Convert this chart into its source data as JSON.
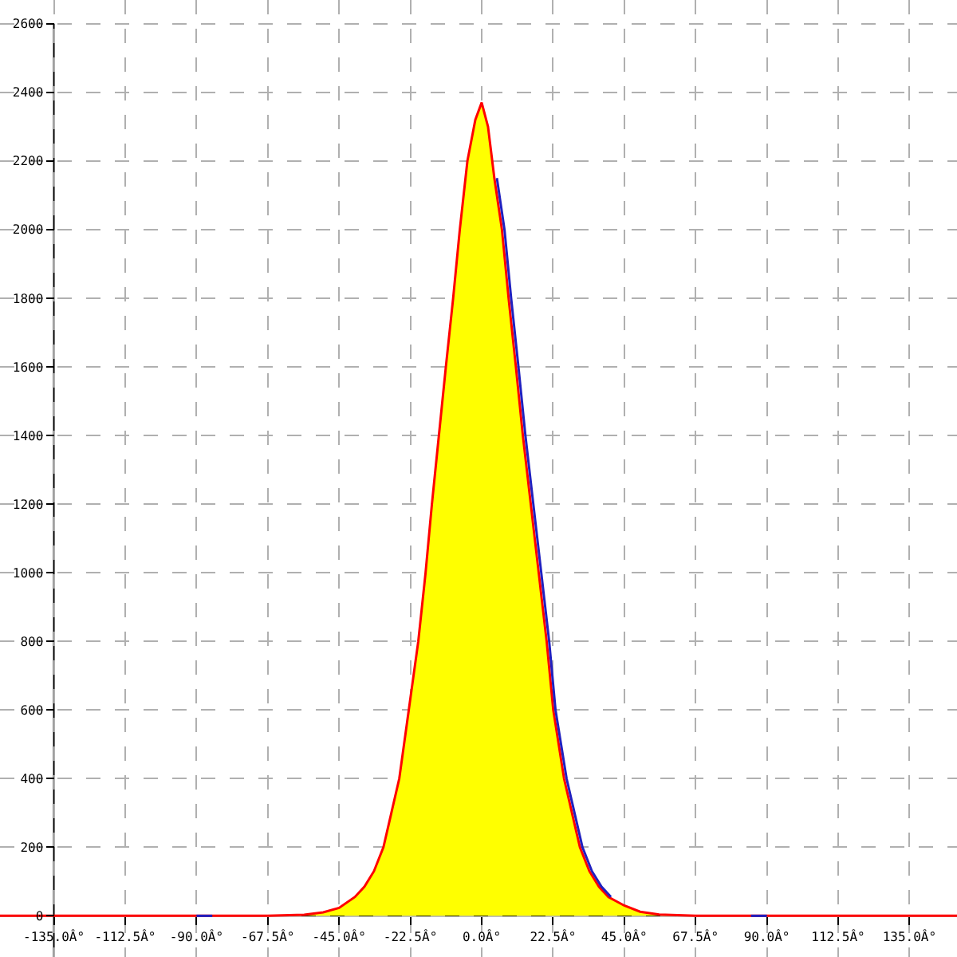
{
  "chart_data": {
    "type": "line",
    "xlim": [
      -152,
      150
    ],
    "ylim": [
      -120,
      2669
    ],
    "xticks": [
      {
        "value": -135,
        "label": "-135.0Â°"
      },
      {
        "value": -112.5,
        "label": "-112.5Â°"
      },
      {
        "value": -90,
        "label": "-90.0Â°"
      },
      {
        "value": -67.5,
        "label": "-67.5Â°"
      },
      {
        "value": -45,
        "label": "-45.0Â°"
      },
      {
        "value": -22.5,
        "label": "-22.5Â°"
      },
      {
        "value": 0,
        "label": "0.0Â°"
      },
      {
        "value": 22.5,
        "label": "22.5Â°"
      },
      {
        "value": 45,
        "label": "45.0Â°"
      },
      {
        "value": 67.5,
        "label": "67.5Â°"
      },
      {
        "value": 90,
        "label": "90.0Â°"
      },
      {
        "value": 112.5,
        "label": "112.5Â°"
      },
      {
        "value": 135,
        "label": "135.0Â°"
      }
    ],
    "yticks": [
      0,
      200,
      400,
      600,
      800,
      1000,
      1200,
      1400,
      1600,
      1800,
      2000,
      2200,
      2400,
      2600
    ],
    "grid": true,
    "line_style": "solid",
    "marker": "none",
    "series": [
      {
        "type": "area",
        "color": "#ffff00",
        "x": [
          -67.5,
          -56,
          -50,
          -45,
          -40,
          -37,
          -34,
          -31,
          -28.5,
          -26,
          -23,
          -20,
          -17.7,
          -15.7,
          -13.5,
          -11.3,
          -9,
          -6.9,
          -4.5,
          -2,
          0,
          2,
          4,
          6.4,
          8.5,
          10.8,
          13,
          15.5,
          18,
          20.5,
          22.6,
          26,
          28.5,
          31,
          34,
          37,
          40,
          45,
          50,
          56,
          67.5
        ],
        "values": [
          0,
          3,
          10,
          23,
          55,
          85,
          130,
          200,
          300,
          400,
          600,
          800,
          1000,
          1200,
          1400,
          1600,
          1800,
          2000,
          2200,
          2320,
          2370,
          2300,
          2150,
          2000,
          1800,
          1600,
          1400,
          1200,
          1000,
          800,
          600,
          400,
          300,
          200,
          130,
          85,
          55,
          30,
          12,
          4,
          0
        ]
      },
      {
        "color": "#ff0000",
        "x": [
          -152,
          -67.5,
          -56,
          -50,
          -45,
          -40,
          -37,
          -34,
          -31,
          -28.5,
          -26,
          -23,
          -20,
          -17.7,
          -15.7,
          -13.5,
          -11.3,
          -9,
          -6.9,
          -4.5,
          -2,
          0,
          2,
          4,
          6.4,
          8.5,
          10.8,
          13,
          15.5,
          18,
          20.5,
          22.6,
          26,
          28.5,
          31,
          34,
          37,
          40,
          45,
          50,
          56,
          67.5,
          150
        ],
        "values": [
          0,
          0,
          3,
          10,
          23,
          55,
          85,
          130,
          200,
          300,
          400,
          600,
          800,
          1000,
          1200,
          1400,
          1600,
          1800,
          2000,
          2200,
          2320,
          2370,
          2300,
          2150,
          2000,
          1800,
          1600,
          1400,
          1200,
          1000,
          800,
          600,
          400,
          300,
          200,
          130,
          85,
          55,
          30,
          12,
          4,
          0,
          0
        ]
      },
      {
        "color": "#2020c0",
        "x": [
          -90,
          -85,
          -50,
          4.8,
          7.2,
          9.3,
          11.6,
          13.8,
          16.3,
          18.8,
          21.3,
          23.3,
          26.8,
          29.3,
          31.8,
          34.8,
          37.8,
          40.8,
          50,
          85,
          90
        ],
        "values": [
          0,
          0,
          null,
          2150,
          2000,
          1800,
          1600,
          1400,
          1200,
          1000,
          800,
          600,
          400,
          300,
          200,
          130,
          85,
          55,
          null,
          0,
          0
        ]
      }
    ]
  }
}
